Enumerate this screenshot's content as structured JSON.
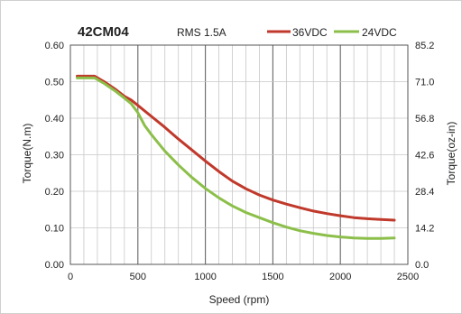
{
  "chart_data": {
    "type": "line",
    "title": "42CM04",
    "subtitle": "RMS 1.5A",
    "xlabel": "Speed (rpm)",
    "ylabel": "Torque(N.m)",
    "ylabel_right": "Torque(oz-in)",
    "xlim": [
      0,
      2500
    ],
    "ylim": [
      0,
      0.6
    ],
    "ylim_right": [
      0,
      85.2
    ],
    "grid": true,
    "legend": "top-right",
    "x_ticks": [
      "0",
      "500",
      "1000",
      "1500",
      "2000",
      "2500"
    ],
    "y_ticks": [
      "0.00",
      "0.10",
      "0.20",
      "0.30",
      "0.40",
      "0.50",
      "0.60"
    ],
    "y_ticks_right": [
      "0.0",
      "14.2",
      "28.4",
      "42.6",
      "56.8",
      "71.0",
      "85.2"
    ],
    "series": [
      {
        "name": "36VDC",
        "color": "#c0392b",
        "x": [
          50,
          100,
          180,
          250,
          330,
          400,
          450,
          500,
          600,
          700,
          800,
          900,
          1000,
          1100,
          1200,
          1300,
          1400,
          1500,
          1600,
          1700,
          1800,
          1900,
          2000,
          2100,
          2200,
          2300,
          2400
        ],
        "y": [
          0.515,
          0.515,
          0.515,
          0.5,
          0.48,
          0.46,
          0.45,
          0.435,
          0.405,
          0.375,
          0.343,
          0.313,
          0.283,
          0.254,
          0.228,
          0.207,
          0.19,
          0.176,
          0.165,
          0.155,
          0.146,
          0.139,
          0.133,
          0.128,
          0.125,
          0.123,
          0.121
        ]
      },
      {
        "name": "24VDC",
        "color": "#8cbf4a",
        "x": [
          50,
          100,
          180,
          250,
          330,
          400,
          450,
          500,
          550,
          600,
          700,
          800,
          900,
          1000,
          1100,
          1200,
          1300,
          1400,
          1500,
          1600,
          1700,
          1800,
          1900,
          2000,
          2100,
          2200,
          2300,
          2400
        ],
        "y": [
          0.51,
          0.51,
          0.51,
          0.495,
          0.475,
          0.455,
          0.44,
          0.415,
          0.38,
          0.355,
          0.31,
          0.272,
          0.238,
          0.208,
          0.182,
          0.16,
          0.142,
          0.128,
          0.114,
          0.102,
          0.092,
          0.085,
          0.079,
          0.075,
          0.072,
          0.071,
          0.071,
          0.072
        ]
      }
    ]
  }
}
